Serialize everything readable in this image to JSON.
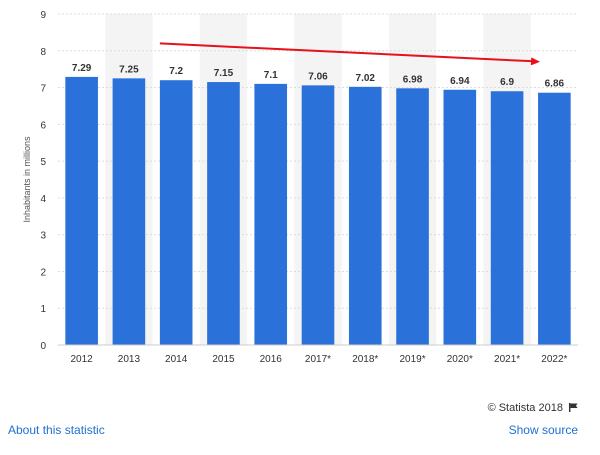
{
  "chart_data": {
    "type": "bar",
    "categories": [
      "2012",
      "2013",
      "2014",
      "2015",
      "2016",
      "2017*",
      "2018*",
      "2019*",
      "2020*",
      "2021*",
      "2022*"
    ],
    "values": [
      7.29,
      7.25,
      7.2,
      7.15,
      7.1,
      7.06,
      7.02,
      6.98,
      6.94,
      6.9,
      6.86
    ],
    "data_labels": [
      "7.29",
      "7.25",
      "7.2",
      "7.15",
      "7.1",
      "7.06",
      "7.02",
      "6.98",
      "6.94",
      "6.9",
      "6.86"
    ],
    "ylabel": "Inhabitants in millions",
    "ylim": [
      0,
      9
    ],
    "yticks": [
      0,
      1,
      2,
      3,
      4,
      5,
      6,
      7,
      8,
      9
    ],
    "grid": true,
    "colors": {
      "bar": "#2a72d9",
      "trend_arrow": "#e8101a",
      "alt_band": "#f4f4f4",
      "grid": "#dcdcdc"
    },
    "annotation": {
      "type": "trend-arrow",
      "from_category": "2014",
      "to_category": "2022*",
      "from_value": 8.2,
      "to_value": 7.7
    }
  },
  "footer": {
    "credit": "© Statista 2018",
    "credit_icon": "flag-icon",
    "about_link": "About this statistic",
    "source_link": "Show source"
  }
}
